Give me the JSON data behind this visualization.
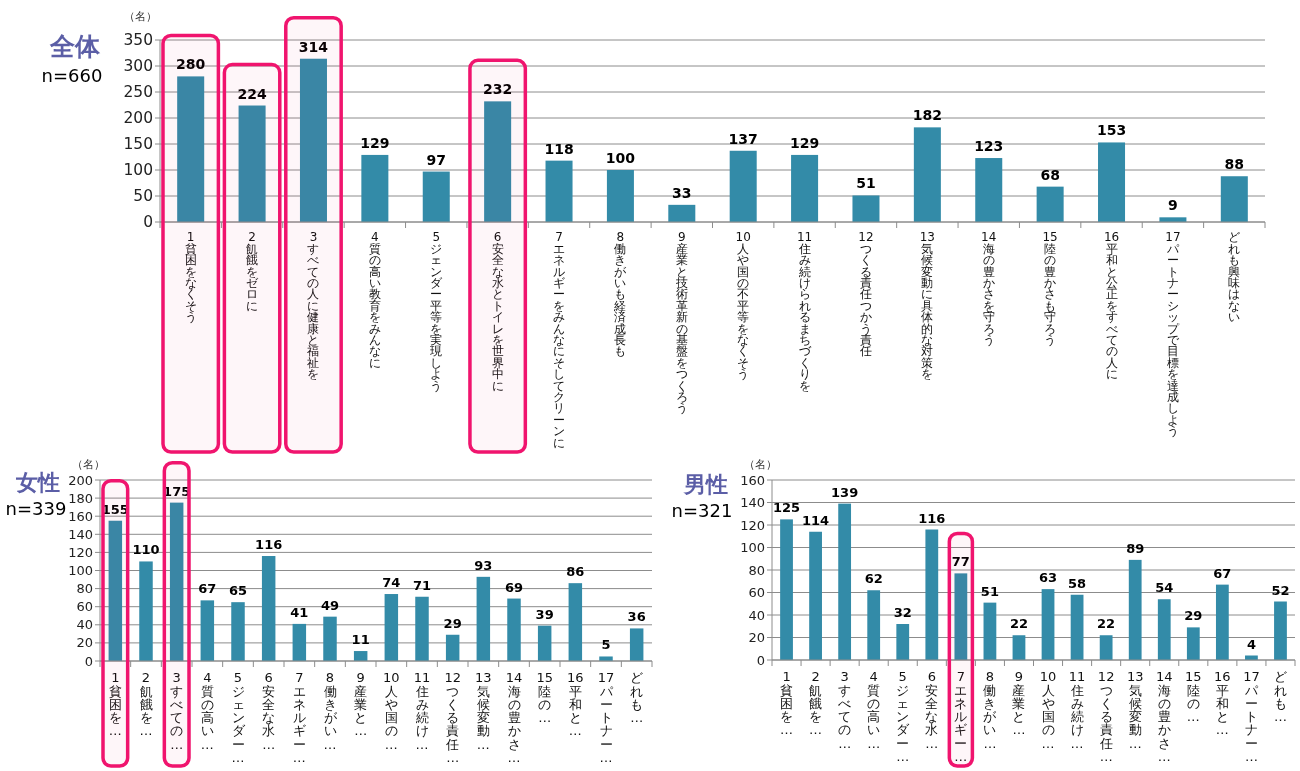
{
  "chart_data": [
    {
      "type": "bar",
      "title": "全体",
      "subtitle": "n=660",
      "ylabel": "（名）",
      "categories": [
        "1貧困をなくそう",
        "2飢餓をゼロに",
        "3すべての人に健康と福祉を",
        "4質の高い教育をみんなに",
        "5ジェンダー平等を実現しよう",
        "6安全な水とトイレを世界中に",
        "7エネルギーをみんなにそしてクリーンに",
        "8働きがいも経済成長も",
        "9産業と技術革新の基盤をつくろう",
        "10人や国の不平等をなくそう",
        "11住み続けられるまちづくりを",
        "12つくる責任つかう責任",
        "13気候変動に具体的な対策を",
        "14海の豊かさを守ろう",
        "15陸の豊かさも守ろう",
        "16平和と公正をすべての人に",
        "17パートナーシップで目標を達成しよう",
        "どれも興味はない"
      ],
      "values": [
        280,
        224,
        314,
        129,
        97,
        232,
        118,
        100,
        33,
        137,
        129,
        51,
        182,
        123,
        68,
        153,
        9,
        88
      ],
      "color": "#338ba8",
      "ylim": [
        0,
        350
      ],
      "yticks": [
        0,
        50,
        100,
        150,
        200,
        250,
        300,
        350
      ],
      "grid": "y",
      "data_labels": true,
      "bands": [
        {
          "axis": "x",
          "from": "1貧困をなくそう",
          "to": "1貧困をなくそう",
          "color": "#f0146e"
        },
        {
          "axis": "x",
          "from": "2飢餓をゼロに",
          "to": "2飢餓をゼロに",
          "color": "#f0146e"
        },
        {
          "axis": "x",
          "from": "3すべての人に健康と福祉を",
          "to": "3すべての人に健康と福祉を",
          "color": "#f0146e"
        },
        {
          "axis": "x",
          "from": "6安全な水とトイレを世界中に",
          "to": "6安全な水とトイレを世界中に",
          "color": "#f0146e"
        }
      ]
    },
    {
      "type": "bar",
      "title": "女性",
      "subtitle": "n=339",
      "ylabel": "（名）",
      "categories": [
        "1貧困を…",
        "2飢餓を…",
        "3すべての…",
        "4質の高い…",
        "5ジェンダー…",
        "6安全な水…",
        "7エネルギー…",
        "8働きがい…",
        "9産業と…",
        "10人や国の…",
        "11住み続け…",
        "12つくる責任…",
        "13気候変動…",
        "14海の豊かさ…",
        "15陸の…",
        "16平和と…",
        "17パートナー…",
        "どれも…"
      ],
      "values": [
        155,
        110,
        175,
        67,
        65,
        116,
        41,
        49,
        11,
        74,
        71,
        29,
        93,
        69,
        39,
        86,
        5,
        36
      ],
      "color": "#338ba8",
      "ylim": [
        0,
        200
      ],
      "yticks": [
        0,
        20,
        40,
        60,
        80,
        100,
        120,
        140,
        160,
        180,
        200
      ],
      "grid": "y",
      "data_labels": true,
      "bands": [
        {
          "axis": "x",
          "from": "1貧困を…",
          "to": "1貧困を…",
          "color": "#f0146e"
        },
        {
          "axis": "x",
          "from": "3すべての…",
          "to": "3すべての…",
          "color": "#f0146e"
        }
      ]
    },
    {
      "type": "bar",
      "title": "男性",
      "subtitle": "n=321",
      "ylabel": "（名）",
      "categories": [
        "1貧困を…",
        "2飢餓を…",
        "3すべての…",
        "4質の高い…",
        "5ジェンダー…",
        "6安全な水…",
        "7エネルギー…",
        "8働きがい…",
        "9産業と…",
        "10人や国の…",
        "11住み続け…",
        "12つくる責任…",
        "13気候変動…",
        "14海の豊かさ…",
        "15陸の…",
        "16平和と…",
        "17パートナー…",
        "どれも…"
      ],
      "values": [
        125,
        114,
        139,
        62,
        32,
        116,
        77,
        51,
        22,
        63,
        58,
        22,
        89,
        54,
        29,
        67,
        4,
        52
      ],
      "color": "#338ba8",
      "ylim": [
        0,
        160
      ],
      "yticks": [
        0,
        20,
        40,
        60,
        80,
        100,
        120,
        140,
        160
      ],
      "grid": "y",
      "data_labels": true,
      "bands": [
        {
          "axis": "x",
          "from": "7エネルギー…",
          "to": "7エネルギー…",
          "color": "#f0146e"
        }
      ]
    }
  ]
}
